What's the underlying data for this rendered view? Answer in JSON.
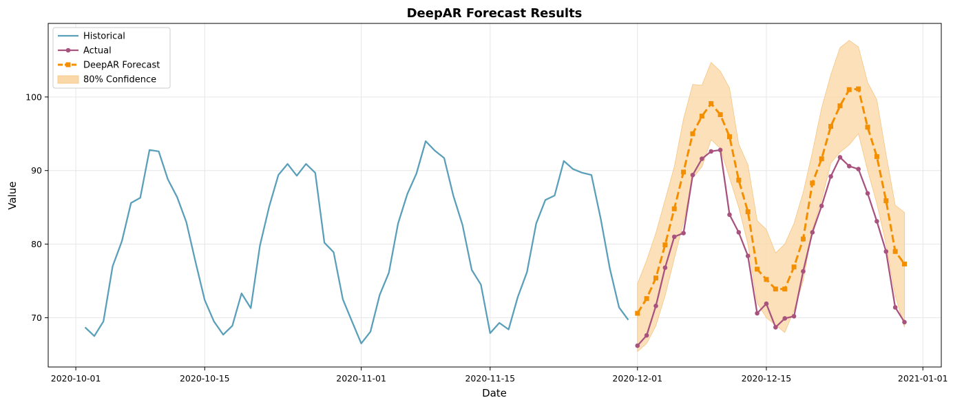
{
  "chart_data": {
    "type": "line",
    "title": "DeepAR Forecast Results",
    "xlabel": "Date",
    "ylabel": "Value",
    "xlim": [
      "2020-09-28",
      "2021-01-03"
    ],
    "ylim": [
      63.3,
      110.0
    ],
    "x_ticks": [
      "2020-10-01",
      "2020-10-15",
      "2020-11-01",
      "2020-11-15",
      "2020-12-01",
      "2020-12-15",
      "2021-01-01"
    ],
    "y_ticks": [
      70,
      80,
      90,
      100
    ],
    "grid": true,
    "legend_position": "upper-left",
    "series": [
      {
        "name": "Historical",
        "color": "#5a9fba",
        "marker": "none",
        "style": "solid",
        "x": [
          "2020-10-02",
          "2020-10-03",
          "2020-10-04",
          "2020-10-05",
          "2020-10-06",
          "2020-10-07",
          "2020-10-08",
          "2020-10-09",
          "2020-10-10",
          "2020-10-11",
          "2020-10-12",
          "2020-10-13",
          "2020-10-14",
          "2020-10-15",
          "2020-10-16",
          "2020-10-17",
          "2020-10-18",
          "2020-10-19",
          "2020-10-20",
          "2020-10-21",
          "2020-10-22",
          "2020-10-23",
          "2020-10-24",
          "2020-10-25",
          "2020-10-26",
          "2020-10-27",
          "2020-10-28",
          "2020-10-29",
          "2020-10-30",
          "2020-10-31",
          "2020-11-01",
          "2020-11-02",
          "2020-11-03",
          "2020-11-04",
          "2020-11-05",
          "2020-11-06",
          "2020-11-07",
          "2020-11-08",
          "2020-11-09",
          "2020-11-10",
          "2020-11-11",
          "2020-11-12",
          "2020-11-13",
          "2020-11-14",
          "2020-11-15",
          "2020-11-16",
          "2020-11-17",
          "2020-11-18",
          "2020-11-19",
          "2020-11-20",
          "2020-11-21",
          "2020-11-22",
          "2020-11-23",
          "2020-11-24",
          "2020-11-25",
          "2020-11-26",
          "2020-11-27",
          "2020-11-28",
          "2020-11-29",
          "2020-11-30"
        ],
        "values": [
          68.7,
          67.5,
          69.5,
          77.0,
          80.4,
          85.6,
          86.3,
          92.8,
          92.6,
          88.8,
          86.4,
          83.0,
          77.6,
          72.4,
          69.5,
          67.7,
          68.9,
          73.3,
          71.3,
          79.8,
          85.1,
          89.4,
          90.9,
          89.3,
          90.9,
          89.7,
          80.2,
          78.9,
          72.5,
          69.5,
          66.5,
          68.1,
          73.1,
          76.1,
          82.8,
          86.8,
          89.6,
          94.0,
          92.7,
          91.7,
          86.6,
          82.6,
          76.5,
          74.5,
          67.9,
          69.3,
          68.4,
          72.8,
          76.2,
          82.8,
          86.0,
          86.6,
          91.3,
          90.2,
          89.7,
          89.4,
          83.5,
          76.7,
          71.4,
          69.7
        ]
      },
      {
        "name": "Actual",
        "color": "#a8527e",
        "marker": "circle",
        "style": "solid",
        "x": [
          "2020-12-01",
          "2020-12-02",
          "2020-12-03",
          "2020-12-04",
          "2020-12-05",
          "2020-12-06",
          "2020-12-07",
          "2020-12-08",
          "2020-12-09",
          "2020-12-10",
          "2020-12-11",
          "2020-12-12",
          "2020-12-13",
          "2020-12-14",
          "2020-12-15",
          "2020-12-16",
          "2020-12-17",
          "2020-12-18",
          "2020-12-19",
          "2020-12-20",
          "2020-12-21",
          "2020-12-22",
          "2020-12-23",
          "2020-12-24",
          "2020-12-25",
          "2020-12-26",
          "2020-12-27",
          "2020-12-28",
          "2020-12-29",
          "2020-12-30"
        ],
        "values": [
          66.2,
          67.6,
          71.6,
          76.8,
          81.0,
          81.5,
          89.4,
          91.6,
          92.6,
          92.8,
          84.0,
          81.6,
          78.4,
          70.6,
          71.9,
          68.7,
          69.9,
          70.2,
          76.3,
          81.6,
          85.2,
          89.2,
          91.8,
          90.6,
          90.2,
          86.9,
          83.1,
          79.0,
          71.4,
          69.4
        ]
      },
      {
        "name": "DeepAR Forecast",
        "color": "#f28e00",
        "marker": "square",
        "style": "dashed",
        "x": [
          "2020-12-01",
          "2020-12-02",
          "2020-12-03",
          "2020-12-04",
          "2020-12-05",
          "2020-12-06",
          "2020-12-07",
          "2020-12-08",
          "2020-12-09",
          "2020-12-10",
          "2020-12-11",
          "2020-12-12",
          "2020-12-13",
          "2020-12-14",
          "2020-12-15",
          "2020-12-16",
          "2020-12-17",
          "2020-12-18",
          "2020-12-19",
          "2020-12-20",
          "2020-12-21",
          "2020-12-22",
          "2020-12-23",
          "2020-12-24",
          "2020-12-25",
          "2020-12-26",
          "2020-12-27",
          "2020-12-28",
          "2020-12-29",
          "2020-12-30"
        ],
        "values": [
          70.6,
          72.6,
          75.4,
          79.9,
          84.8,
          89.8,
          95.0,
          97.4,
          99.1,
          97.6,
          94.6,
          88.7,
          84.4,
          76.6,
          75.2,
          73.9,
          73.9,
          76.9,
          80.7,
          88.3,
          91.6,
          96.0,
          98.8,
          101.0,
          101.1,
          95.9,
          91.9,
          85.9,
          79.0,
          77.3
        ]
      }
    ],
    "confidence_band": {
      "name": "80% Confidence",
      "color": "#fbd8a8",
      "x": [
        "2020-12-01",
        "2020-12-02",
        "2020-12-03",
        "2020-12-04",
        "2020-12-05",
        "2020-12-06",
        "2020-12-07",
        "2020-12-08",
        "2020-12-09",
        "2020-12-10",
        "2020-12-11",
        "2020-12-12",
        "2020-12-13",
        "2020-12-14",
        "2020-12-15",
        "2020-12-16",
        "2020-12-17",
        "2020-12-18",
        "2020-12-19",
        "2020-12-20",
        "2020-12-21",
        "2020-12-22",
        "2020-12-23",
        "2020-12-24",
        "2020-12-25",
        "2020-12-26",
        "2020-12-27",
        "2020-12-28",
        "2020-12-29",
        "2020-12-30"
      ],
      "lower": [
        65.4,
        66.5,
        68.9,
        73.0,
        78.0,
        83.0,
        89.0,
        90.5,
        94.2,
        93.0,
        89.0,
        85.0,
        80.0,
        72.0,
        70.0,
        69.0,
        68.0,
        71.0,
        75.0,
        82.0,
        86.0,
        91.0,
        92.5,
        93.5,
        95.0,
        90.0,
        85.5,
        80.0,
        73.0,
        68.7
      ],
      "upper": [
        74.6,
        77.8,
        81.5,
        86.0,
        90.5,
        97.0,
        101.7,
        101.6,
        104.7,
        103.5,
        101.2,
        93.6,
        90.8,
        83.2,
        82.0,
        78.8,
        80.0,
        82.8,
        87.0,
        92.5,
        98.5,
        103.0,
        106.7,
        107.7,
        106.8,
        102.0,
        99.6,
        92.2,
        85.3,
        84.3
      ]
    }
  }
}
